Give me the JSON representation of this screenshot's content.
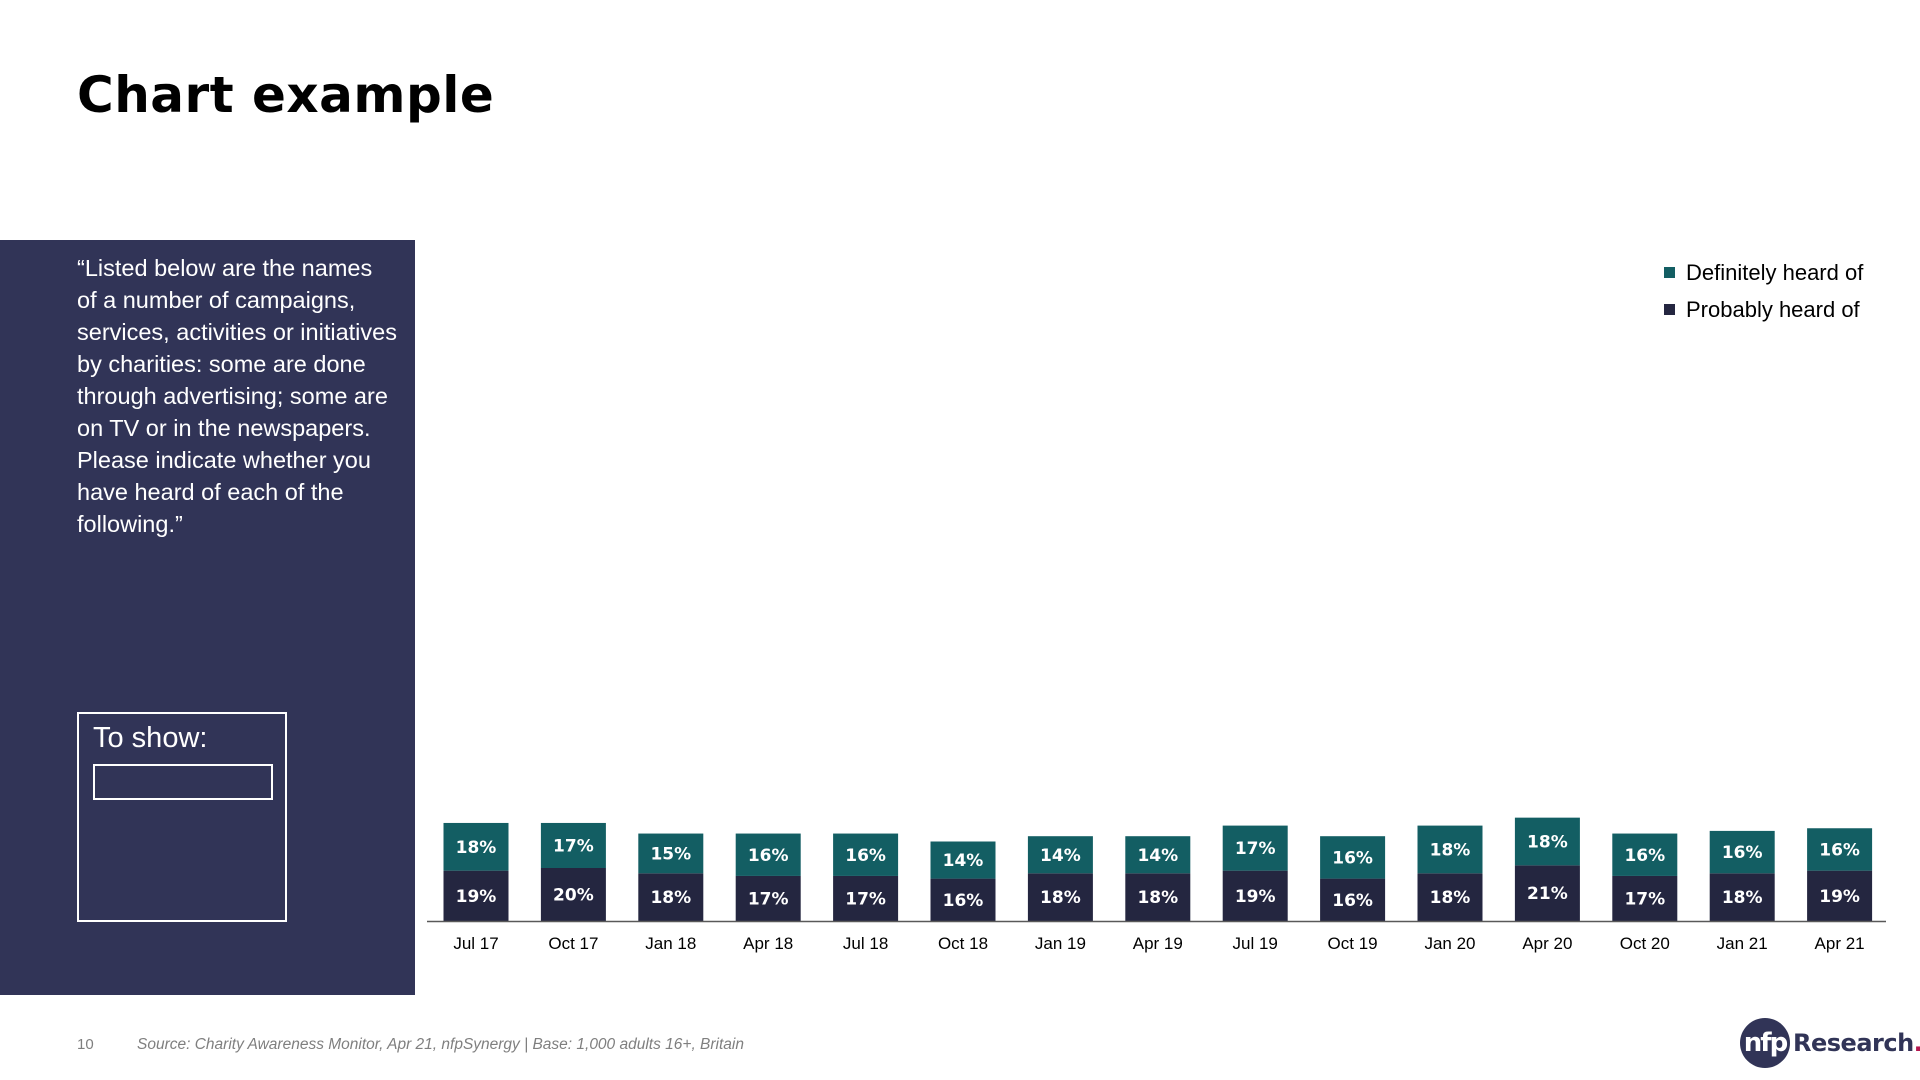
{
  "page_title": "Chart example",
  "question": "“Listed below are the names of a number of campaigns, services, activities or initiatives by charities: some are done through advertising; some are on TV or in the newspapers. Please indicate whether you have heard of each of the following.”",
  "to_show": {
    "label": "To show:",
    "value": ""
  },
  "footer": {
    "page_number": "10",
    "source": "Source: Charity Awareness Monitor, Apr 21, nfpSynergy | Base: 1,000 adults 16+, Britain"
  },
  "logo": {
    "mark": "nfp",
    "text": "Research",
    "dot": "."
  },
  "colors": {
    "panel": "#313457",
    "definitely": "#135e63",
    "probably": "#242640",
    "logo_dot": "#b5174f"
  },
  "chart_data": {
    "type": "bar",
    "stacked": true,
    "categories": [
      "Jul 17",
      "Oct 17",
      "Jan 18",
      "Apr 18",
      "Jul 18",
      "Oct 18",
      "Jan 19",
      "Apr 19",
      "Jul 19",
      "Oct 19",
      "Jan 20",
      "Apr 20",
      "Oct 20",
      "Jan 21",
      "Apr 21"
    ],
    "series": [
      {
        "name": "Probably heard of",
        "color": "#242640",
        "values": [
          19,
          20,
          18,
          17,
          17,
          16,
          18,
          18,
          19,
          16,
          18,
          21,
          17,
          18,
          19
        ]
      },
      {
        "name": "Definitely heard of",
        "color": "#135e63",
        "values": [
          18,
          17,
          15,
          16,
          16,
          14,
          14,
          14,
          17,
          16,
          18,
          18,
          16,
          16,
          16
        ]
      }
    ],
    "value_format": "%",
    "data_labels": true,
    "legend": {
      "position": "top-right",
      "order": [
        "Definitely heard of",
        "Probably heard of"
      ]
    },
    "grid": false,
    "title": "",
    "xlabel": "",
    "ylabel": ""
  }
}
